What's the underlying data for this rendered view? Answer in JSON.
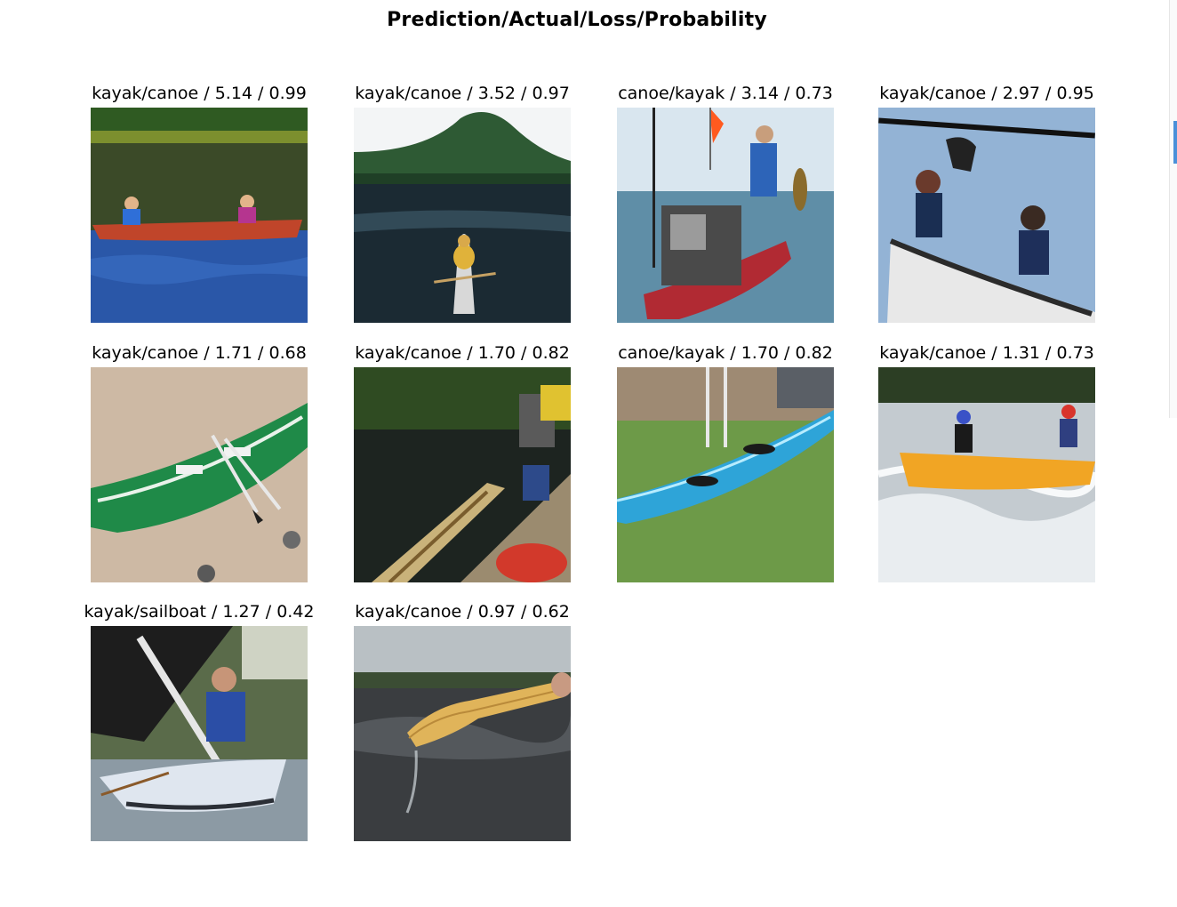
{
  "figure": {
    "title": "Prediction/Actual/Loss/Probability"
  },
  "tiles": [
    {
      "label": "kayak/canoe / 5.14 / 0.99",
      "image": "two people paddling a red canoe on a lake"
    },
    {
      "label": "kayak/canoe / 3.52 / 0.97",
      "image": "person in yellow jacket in canoe facing forested mountain"
    },
    {
      "label": "canoe/kayak / 3.14 / 0.73",
      "image": "angler holding fish on red fishing kayak with flag"
    },
    {
      "label": "kayak/canoe / 2.97 / 0.95",
      "image": "two women raising paddle overhead in canoe"
    },
    {
      "label": "kayak/canoe / 1.71 / 0.68",
      "image": "green canoe with paddles on sand"
    },
    {
      "label": "kayak/canoe / 1.70 / 0.82",
      "image": "canoe at dock with camping gear"
    },
    {
      "label": "canoe/kayak / 1.70 / 0.82",
      "image": "blue kayak on grass by building"
    },
    {
      "label": "kayak/canoe / 1.31 / 0.73",
      "image": "yellow canoe in whitewater rapids"
    },
    {
      "label": "kayak/sailboat / 1.27 / 0.42",
      "image": "man sailing small white sailboat"
    },
    {
      "label": "kayak/canoe / 0.97 / 0.62",
      "image": "wooden paddle splashing water"
    }
  ],
  "colors": {
    "scroll_thumb": "#4a90d9"
  }
}
